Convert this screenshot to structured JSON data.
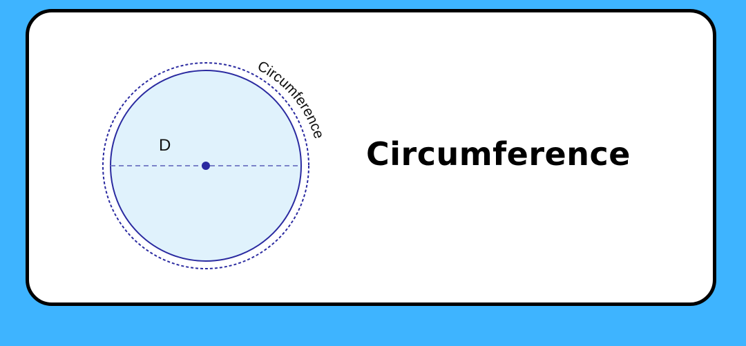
{
  "diagram": {
    "diameter_label": "D",
    "arc_label": "Circumference"
  },
  "heading": "Circumference",
  "colors": {
    "background": "#3eb4ff",
    "card": "#ffffff",
    "circle_fill": "#e0f2fc",
    "circle_stroke": "#2a2aa0",
    "dashed": "#7a82c8"
  }
}
